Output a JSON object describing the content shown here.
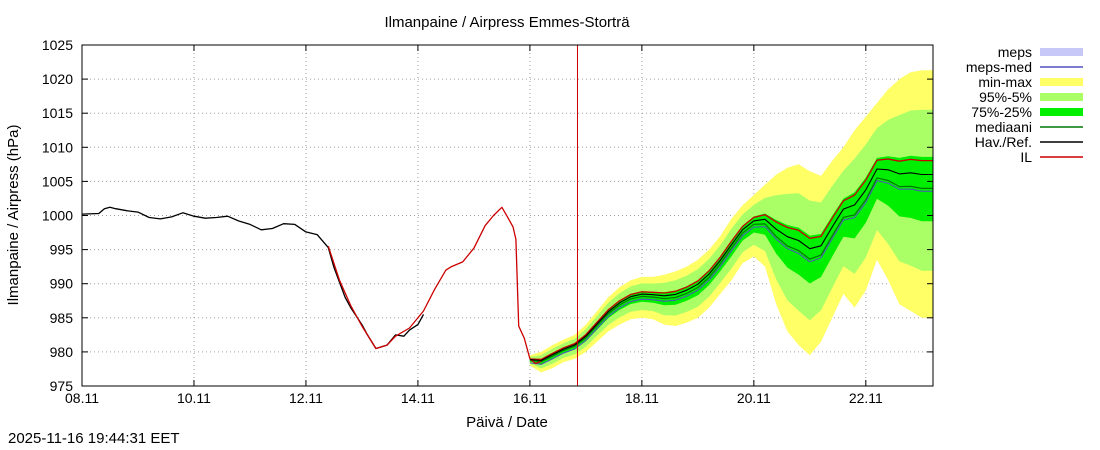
{
  "timestamp": "2025-11-16 19:44:31 EET",
  "chart_data": {
    "type": "line",
    "title": "Ilmanpaine / Airpress Emmes-Storträ",
    "xlabel": "Päivä / Date",
    "ylabel": "Ilmanpaine / Airpress (hPa)",
    "xlim": [
      0,
      15.2
    ],
    "ylim": [
      975,
      1025
    ],
    "grid": true,
    "legend_position": "right",
    "x_unit": "days since 08.11",
    "x_ticks": [
      {
        "x": 0,
        "label": "08.11"
      },
      {
        "x": 2,
        "label": "10.11"
      },
      {
        "x": 4,
        "label": "12.11"
      },
      {
        "x": 6,
        "label": "14.11"
      },
      {
        "x": 8,
        "label": "16.11"
      },
      {
        "x": 10,
        "label": "18.11"
      },
      {
        "x": 12,
        "label": "20.11"
      },
      {
        "x": 14,
        "label": "22.11"
      }
    ],
    "y_ticks": [
      975,
      980,
      985,
      990,
      995,
      1000,
      1005,
      1010,
      1015,
      1020,
      1025
    ],
    "analysis_time": 8.85,
    "legend": [
      {
        "key": "meps",
        "label": "meps",
        "kind": "box",
        "color": "#c8c8f8"
      },
      {
        "key": "meps_med",
        "label": "meps-med",
        "kind": "line",
        "color": "#5050c0"
      },
      {
        "key": "minmax",
        "label": "min-max",
        "kind": "box",
        "color": "#ffff66"
      },
      {
        "key": "p95_5",
        "label": "95%-5%",
        "kind": "box",
        "color": "#aaff66"
      },
      {
        "key": "p75_25",
        "label": "75%-25%",
        "kind": "box",
        "color": "#00ee00"
      },
      {
        "key": "median",
        "label": "mediaani",
        "kind": "line",
        "color": "#007700"
      },
      {
        "key": "obs",
        "label": "Hav./Ref.",
        "kind": "line",
        "color": "#000000"
      },
      {
        "key": "il",
        "label": "IL",
        "kind": "line",
        "color": "#cc0000"
      }
    ],
    "series": {
      "obs": {
        "x": [
          0.0,
          0.3,
          0.4,
          0.5,
          0.6,
          0.8,
          1.0,
          1.2,
          1.4,
          1.6,
          1.8,
          2.0,
          2.2,
          2.4,
          2.6,
          2.8,
          3.0,
          3.2,
          3.4,
          3.6,
          3.8,
          4.0,
          4.2,
          4.4,
          4.5,
          4.7,
          4.8,
          5.0,
          5.1,
          5.25,
          5.45,
          5.6,
          5.75,
          5.85,
          6.0,
          6.1
        ],
        "y": [
          1000.2,
          1000.3,
          1001.0,
          1001.2,
          1001.0,
          1000.7,
          1000.5,
          999.7,
          999.5,
          999.8,
          1000.4,
          999.9,
          999.6,
          999.7,
          999.9,
          999.2,
          998.7,
          997.9,
          998.1,
          998.8,
          998.7,
          997.6,
          997.2,
          995.3,
          992.4,
          988.0,
          986.5,
          984.0,
          982.5,
          980.5,
          981.0,
          982.5,
          982.3,
          983.2,
          984.0,
          985.5
        ]
      },
      "il_hist": {
        "x": [
          4.4,
          4.6,
          4.8,
          5.0,
          5.25,
          5.45,
          5.6,
          5.85,
          6.1,
          6.3,
          6.5,
          6.6,
          6.8,
          7.0,
          7.2,
          7.35,
          7.5,
          7.6,
          7.7,
          7.75,
          7.8,
          7.9,
          8.0,
          8.1,
          8.2
        ],
        "y": [
          995.5,
          990.5,
          986.8,
          983.8,
          980.5,
          981.0,
          982.3,
          983.5,
          986.0,
          989.2,
          992.0,
          992.5,
          993.2,
          995.2,
          998.5,
          1000.0,
          1001.2,
          999.8,
          998.3,
          996.5,
          983.8,
          982.0,
          979.0,
          978.3,
          978.6
        ]
      },
      "x_fc": [
        8.0,
        8.2,
        8.4,
        8.6,
        8.8,
        9.0,
        9.2,
        9.4,
        9.6,
        9.8,
        10.0,
        10.2,
        10.4,
        10.6,
        10.8,
        11.0,
        11.2,
        11.4,
        11.6,
        11.8,
        12.0,
        12.2,
        12.4,
        12.6,
        12.8,
        13.0,
        13.2,
        13.4,
        13.6,
        13.8,
        14.0,
        14.2,
        14.4,
        14.6,
        14.8,
        15.0,
        15.2
      ],
      "minmax_hi": [
        979.5,
        980.0,
        981.0,
        981.8,
        982.5,
        984.0,
        986.0,
        988.0,
        989.5,
        990.5,
        991.0,
        991.0,
        991.3,
        991.8,
        992.5,
        993.5,
        995.0,
        997.0,
        999.5,
        1001.5,
        1003.0,
        1004.5,
        1006.0,
        1007.0,
        1007.5,
        1006.5,
        1005.8,
        1008.0,
        1010.0,
        1012.5,
        1014.5,
        1016.5,
        1018.5,
        1020.0,
        1021.0,
        1021.3,
        1021.3
      ],
      "minmax_lo": [
        978.0,
        977.0,
        977.6,
        978.5,
        979.0,
        980.0,
        981.5,
        983.0,
        984.0,
        984.8,
        985.0,
        984.8,
        984.0,
        983.8,
        984.3,
        985.0,
        986.5,
        988.5,
        990.5,
        993.0,
        994.0,
        992.5,
        987.0,
        983.0,
        981.0,
        979.5,
        981.5,
        985.0,
        988.5,
        986.5,
        989.0,
        993.5,
        990.5,
        987.0,
        986.0,
        985.0,
        985.0
      ]
    }
  }
}
